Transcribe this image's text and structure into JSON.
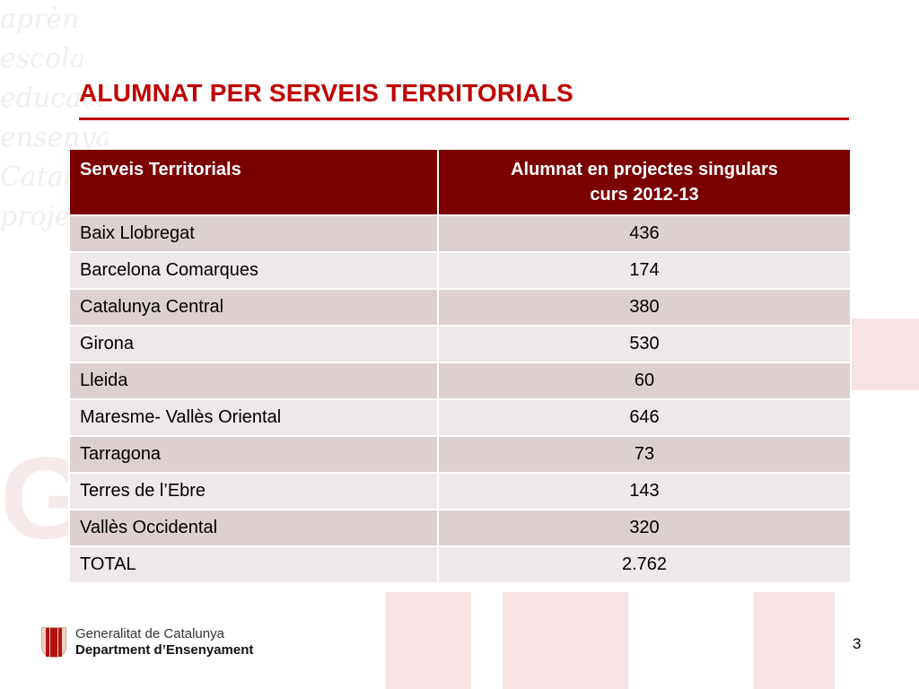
{
  "slide": {
    "title": "ALUMNAT PER SERVEIS TERRITORIALS",
    "page_number": "3"
  },
  "colors": {
    "title": "#c00000",
    "header_bg": "#7b0000",
    "row_odd": "#ddd0d0",
    "row_even": "#efe8e8"
  },
  "table": {
    "headers": {
      "territory": "Serveis Territorials",
      "students_line1": "Alumnat en projectes singulars",
      "students_line2": "curs 2012-13"
    },
    "rows": [
      {
        "territory": "Baix Llobregat",
        "students": "436"
      },
      {
        "territory": "Barcelona Comarques",
        "students": "174"
      },
      {
        "territory": "Catalunya Central",
        "students": "380"
      },
      {
        "territory": "Girona",
        "students": "530"
      },
      {
        "territory": "Lleida",
        "students": "60"
      },
      {
        "territory": "Maresme- Vallès Oriental",
        "students": "646"
      },
      {
        "territory": "Tarragona",
        "students": "73"
      },
      {
        "territory": "Terres de l’Ebre",
        "students": "143"
      },
      {
        "territory": "Vallès Occidental",
        "students": "320"
      },
      {
        "territory": "TOTAL",
        "students": "2.762"
      }
    ]
  },
  "footer": {
    "logo_icon": "catalan-shield-icon",
    "org_line1": "Generalitat de Catalunya",
    "org_line2": "Department d’Ensenyament"
  }
}
